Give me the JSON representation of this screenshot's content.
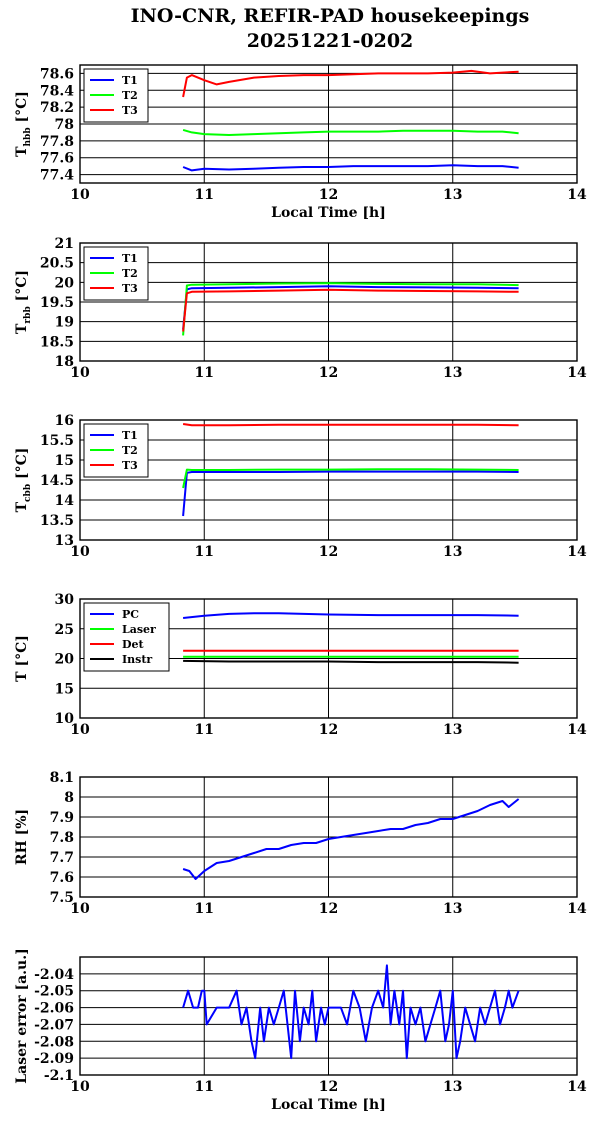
{
  "title_line1": "INO-CNR, REFIR-PAD housekeepings",
  "title_line2": "20251221-0202",
  "chart_data": [
    {
      "type": "line",
      "ylabel_main": "T",
      "ylabel_sub": "hbb",
      "ylabel_unit": "[°C]",
      "xlabel": "Local Time [h]",
      "xlim": [
        10,
        14
      ],
      "ylim": [
        77.3,
        78.7
      ],
      "xticks": [
        10,
        11,
        12,
        13,
        14
      ],
      "yticks": [
        77.4,
        77.6,
        77.8,
        78,
        78.2,
        78.4,
        78.6
      ],
      "ytick_labels": [
        "77.4",
        "77.6",
        "77.8",
        "78",
        "78.2",
        "78.4",
        "78.6"
      ],
      "grid": "horizontal",
      "legend": "top-left",
      "series": [
        {
          "name": "T1",
          "color": "#0000ff",
          "x": [
            10.83,
            10.9,
            11.0,
            11.2,
            11.4,
            11.6,
            11.8,
            12.0,
            12.2,
            12.4,
            12.6,
            12.8,
            13.0,
            13.2,
            13.4,
            13.53
          ],
          "y": [
            77.49,
            77.45,
            77.47,
            77.46,
            77.47,
            77.48,
            77.49,
            77.49,
            77.5,
            77.5,
            77.5,
            77.5,
            77.51,
            77.5,
            77.5,
            77.48
          ]
        },
        {
          "name": "T2",
          "color": "#00ff00",
          "x": [
            10.83,
            10.9,
            11.0,
            11.2,
            11.4,
            11.6,
            11.8,
            12.0,
            12.2,
            12.4,
            12.6,
            12.8,
            13.0,
            13.2,
            13.4,
            13.53
          ],
          "y": [
            77.93,
            77.9,
            77.88,
            77.87,
            77.88,
            77.89,
            77.9,
            77.91,
            77.91,
            77.91,
            77.92,
            77.92,
            77.92,
            77.91,
            77.91,
            77.89
          ]
        },
        {
          "name": "T3",
          "color": "#ff0000",
          "x": [
            10.83,
            10.86,
            10.9,
            11.0,
            11.1,
            11.2,
            11.4,
            11.6,
            11.8,
            12.0,
            12.2,
            12.4,
            12.6,
            12.8,
            13.0,
            13.15,
            13.3,
            13.4,
            13.53
          ],
          "y": [
            78.32,
            78.55,
            78.58,
            78.52,
            78.47,
            78.5,
            78.55,
            78.57,
            78.58,
            78.58,
            78.59,
            78.6,
            78.6,
            78.6,
            78.61,
            78.63,
            78.6,
            78.61,
            78.62
          ]
        }
      ]
    },
    {
      "type": "line",
      "ylabel_main": "T",
      "ylabel_sub": "rbb",
      "ylabel_unit": "[°C]",
      "xlabel": "",
      "xlim": [
        10,
        14
      ],
      "ylim": [
        18,
        21
      ],
      "xticks": [
        10,
        11,
        12,
        13,
        14
      ],
      "yticks": [
        18,
        18.5,
        19,
        19.5,
        20,
        20.5,
        21
      ],
      "ytick_labels": [
        "18",
        "18.5",
        "19",
        "19.5",
        "20",
        "20.5",
        "21"
      ],
      "grid": "horizontal",
      "legend": "top-left",
      "series": [
        {
          "name": "T1",
          "color": "#0000ff",
          "x": [
            10.83,
            10.86,
            10.9,
            11.2,
            11.6,
            12.0,
            12.4,
            12.8,
            13.2,
            13.53
          ],
          "y": [
            18.8,
            19.82,
            19.85,
            19.86,
            19.88,
            19.9,
            19.88,
            19.87,
            19.86,
            19.85
          ]
        },
        {
          "name": "T2",
          "color": "#00ff00",
          "x": [
            10.83,
            10.86,
            10.9,
            11.2,
            11.6,
            12.0,
            12.4,
            12.8,
            13.2,
            13.53
          ],
          "y": [
            18.65,
            19.92,
            19.94,
            19.95,
            19.97,
            19.98,
            19.96,
            19.95,
            19.95,
            19.93
          ]
        },
        {
          "name": "T3",
          "color": "#ff0000",
          "x": [
            10.83,
            10.86,
            10.9,
            11.2,
            11.6,
            12.0,
            12.4,
            12.8,
            13.2,
            13.53
          ],
          "y": [
            18.75,
            19.72,
            19.76,
            19.77,
            19.79,
            19.81,
            19.79,
            19.78,
            19.77,
            19.76
          ]
        }
      ]
    },
    {
      "type": "line",
      "ylabel_main": "T",
      "ylabel_sub": "cbb",
      "ylabel_unit": "[°C]",
      "xlabel": "",
      "xlim": [
        10,
        14
      ],
      "ylim": [
        13,
        16
      ],
      "xticks": [
        10,
        11,
        12,
        13,
        14
      ],
      "yticks": [
        13,
        13.5,
        14,
        14.5,
        15,
        15.5,
        16
      ],
      "ytick_labels": [
        "13",
        "13.5",
        "14",
        "14.5",
        "15",
        "15.5",
        "16"
      ],
      "grid": "horizontal",
      "legend": "top-left",
      "series": [
        {
          "name": "T1",
          "color": "#0000ff",
          "x": [
            10.83,
            10.86,
            10.9,
            11.2,
            11.6,
            12.0,
            12.4,
            12.8,
            13.2,
            13.53
          ],
          "y": [
            13.6,
            14.68,
            14.7,
            14.7,
            14.7,
            14.71,
            14.71,
            14.71,
            14.71,
            14.7
          ]
        },
        {
          "name": "T2",
          "color": "#00ff00",
          "x": [
            10.83,
            10.86,
            10.9,
            11.2,
            11.6,
            12.0,
            12.4,
            12.8,
            13.2,
            13.53
          ],
          "y": [
            14.3,
            14.76,
            14.75,
            14.75,
            14.76,
            14.76,
            14.77,
            14.77,
            14.76,
            14.75
          ]
        },
        {
          "name": "T3",
          "color": "#ff0000",
          "x": [
            10.83,
            10.9,
            11.2,
            11.6,
            12.0,
            12.4,
            12.8,
            13.2,
            13.53
          ],
          "y": [
            15.9,
            15.87,
            15.87,
            15.88,
            15.88,
            15.88,
            15.88,
            15.88,
            15.87
          ]
        }
      ]
    },
    {
      "type": "line",
      "ylabel_main": "T [°C]",
      "ylabel_sub": "",
      "ylabel_unit": "",
      "xlabel": "",
      "xlim": [
        10,
        14
      ],
      "ylim": [
        10,
        30
      ],
      "xticks": [
        10,
        11,
        12,
        13,
        14
      ],
      "yticks": [
        10,
        15,
        20,
        25,
        30
      ],
      "ytick_labels": [
        "10",
        "15",
        "20",
        "25",
        "30"
      ],
      "grid": "horizontal",
      "legend": "top-left",
      "series": [
        {
          "name": "PC",
          "color": "#0000ff",
          "x": [
            10.83,
            11.0,
            11.2,
            11.4,
            11.6,
            11.8,
            12.0,
            12.4,
            12.8,
            13.2,
            13.53
          ],
          "y": [
            26.8,
            27.2,
            27.5,
            27.6,
            27.6,
            27.5,
            27.4,
            27.3,
            27.3,
            27.3,
            27.2
          ]
        },
        {
          "name": "Laser",
          "color": "#00ff00",
          "x": [
            10.83,
            11.2,
            11.6,
            12.0,
            12.4,
            12.8,
            13.2,
            13.53
          ],
          "y": [
            20.3,
            20.3,
            20.3,
            20.3,
            20.3,
            20.3,
            20.3,
            20.3
          ]
        },
        {
          "name": "Det",
          "color": "#ff0000",
          "x": [
            10.83,
            11.2,
            11.6,
            12.0,
            12.4,
            12.8,
            13.2,
            13.53
          ],
          "y": [
            21.3,
            21.3,
            21.3,
            21.3,
            21.3,
            21.3,
            21.3,
            21.3
          ]
        },
        {
          "name": "Instr",
          "color": "#000000",
          "x": [
            10.83,
            11.2,
            11.6,
            12.0,
            12.4,
            12.8,
            13.2,
            13.53
          ],
          "y": [
            19.6,
            19.5,
            19.5,
            19.5,
            19.4,
            19.4,
            19.4,
            19.3
          ]
        }
      ]
    },
    {
      "type": "line",
      "ylabel_main": "RH [%]",
      "ylabel_sub": "",
      "ylabel_unit": "",
      "xlabel": "",
      "xlim": [
        10,
        14
      ],
      "ylim": [
        7.5,
        8.1
      ],
      "xticks": [
        10,
        11,
        12,
        13,
        14
      ],
      "yticks": [
        7.5,
        7.6,
        7.7,
        7.8,
        7.9,
        8,
        8.1
      ],
      "ytick_labels": [
        "7.5",
        "7.6",
        "7.7",
        "7.8",
        "7.9",
        "8",
        "8.1"
      ],
      "grid": "horizontal",
      "legend": "none",
      "series": [
        {
          "color": "#0000ff",
          "x": [
            10.83,
            10.88,
            10.93,
            11.0,
            11.1,
            11.2,
            11.3,
            11.4,
            11.5,
            11.6,
            11.7,
            11.8,
            11.9,
            12.0,
            12.1,
            12.2,
            12.3,
            12.4,
            12.5,
            12.6,
            12.7,
            12.8,
            12.9,
            13.0,
            13.1,
            13.2,
            13.3,
            13.4,
            13.45,
            13.53
          ],
          "y": [
            7.64,
            7.63,
            7.59,
            7.63,
            7.67,
            7.68,
            7.7,
            7.72,
            7.74,
            7.74,
            7.76,
            7.77,
            7.77,
            7.79,
            7.8,
            7.81,
            7.82,
            7.83,
            7.84,
            7.84,
            7.86,
            7.87,
            7.89,
            7.89,
            7.91,
            7.93,
            7.96,
            7.98,
            7.95,
            7.99
          ]
        }
      ]
    },
    {
      "type": "line",
      "ylabel_main": "Laser error [a.u.]",
      "ylabel_sub": "",
      "ylabel_unit": "",
      "xlabel": "Local Time [h]",
      "xlim": [
        10,
        14
      ],
      "ylim": [
        -2.1,
        -2.03
      ],
      "xticks": [
        10,
        11,
        12,
        13,
        14
      ],
      "yticks": [
        -2.1,
        -2.09,
        -2.08,
        -2.07,
        -2.06,
        -2.05,
        -2.04
      ],
      "ytick_labels": [
        "-2.1",
        "-2.09",
        "-2.08",
        "-2.07",
        "-2.06",
        "-2.05",
        "-2.04"
      ],
      "grid": "horizontal",
      "legend": "none",
      "series": [
        {
          "color": "#0000ff",
          "x": [
            10.83,
            10.87,
            10.91,
            10.95,
            10.98,
            11.0,
            11.02,
            11.1,
            11.2,
            11.26,
            11.3,
            11.34,
            11.38,
            11.41,
            11.45,
            11.48,
            11.52,
            11.56,
            11.6,
            11.64,
            11.67,
            11.7,
            11.73,
            11.77,
            11.8,
            11.84,
            11.87,
            11.9,
            11.94,
            11.97,
            12.0,
            12.05,
            12.1,
            12.15,
            12.2,
            12.25,
            12.3,
            12.35,
            12.4,
            12.44,
            12.47,
            12.5,
            12.53,
            12.57,
            12.6,
            12.63,
            12.66,
            12.7,
            12.74,
            12.78,
            12.82,
            12.86,
            12.9,
            12.94,
            12.97,
            13.0,
            13.03,
            13.06,
            13.1,
            13.14,
            13.18,
            13.22,
            13.26,
            13.3,
            13.34,
            13.38,
            13.42,
            13.45,
            13.48,
            13.53
          ],
          "y": [
            -2.06,
            -2.05,
            -2.06,
            -2.06,
            -2.05,
            -2.05,
            -2.07,
            -2.06,
            -2.06,
            -2.05,
            -2.07,
            -2.06,
            -2.08,
            -2.09,
            -2.06,
            -2.08,
            -2.06,
            -2.07,
            -2.06,
            -2.05,
            -2.07,
            -2.09,
            -2.05,
            -2.08,
            -2.06,
            -2.07,
            -2.05,
            -2.08,
            -2.06,
            -2.07,
            -2.06,
            -2.06,
            -2.06,
            -2.07,
            -2.05,
            -2.06,
            -2.08,
            -2.06,
            -2.05,
            -2.06,
            -2.035,
            -2.07,
            -2.05,
            -2.07,
            -2.05,
            -2.09,
            -2.06,
            -2.07,
            -2.06,
            -2.08,
            -2.07,
            -2.06,
            -2.05,
            -2.08,
            -2.07,
            -2.05,
            -2.09,
            -2.08,
            -2.06,
            -2.07,
            -2.08,
            -2.06,
            -2.07,
            -2.06,
            -2.05,
            -2.07,
            -2.06,
            -2.05,
            -2.06,
            -2.05
          ]
        }
      ]
    }
  ]
}
